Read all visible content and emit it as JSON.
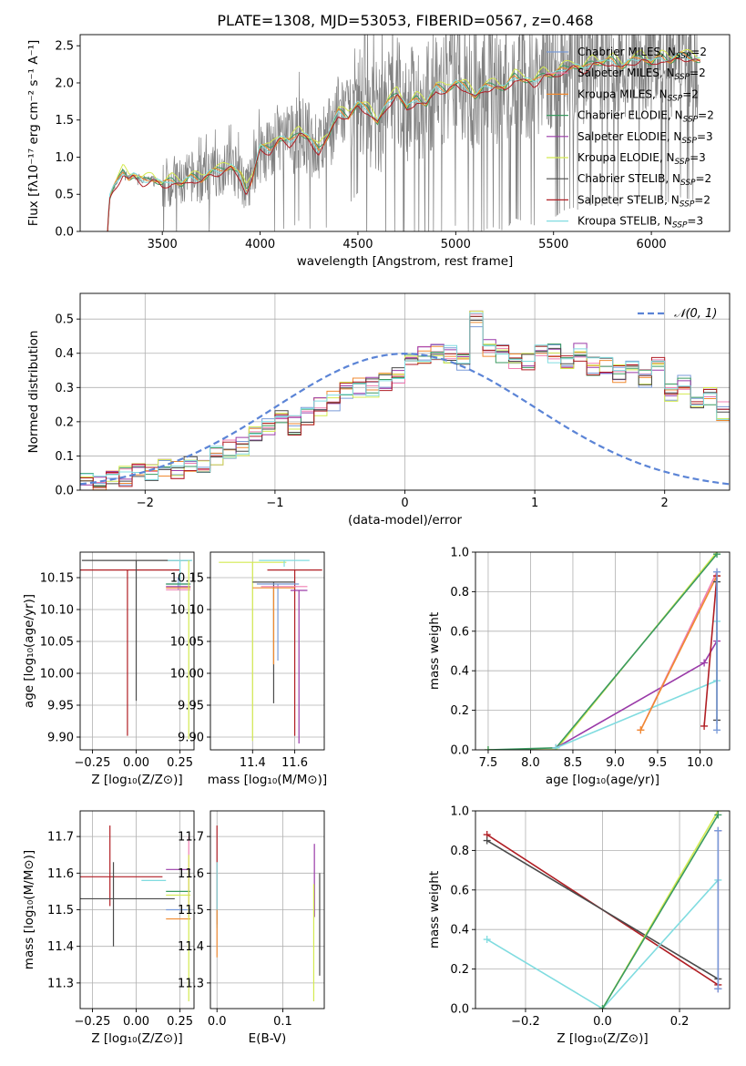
{
  "figure_title": "PLATE=1308, MJD=53053, FIBERID=0567, z=0.468",
  "colors": {
    "Chabrier MILES": "#7a9bd8",
    "Salpeter MILES": "#f07fb0",
    "Kroupa MILES": "#f08a30",
    "Chabrier ELODIE": "#3a9a60",
    "Salpeter ELODIE": "#9a3aa8",
    "Kroupa ELODIE": "#d4ea50",
    "Chabrier STELIB": "#4a4a4a",
    "Salpeter STELIB": "#b01e24",
    "Kroupa STELIB": "#80dce0",
    "data": "#808080",
    "normal": "#5b84d6"
  },
  "legend_models": [
    {
      "label": "Chabrier MILES, N",
      "nssp": "=2",
      "key": "Chabrier MILES"
    },
    {
      "label": "Salpeter MILES, N",
      "nssp": "=2",
      "key": "Salpeter MILES"
    },
    {
      "label": "Kroupa MILES, N",
      "nssp": "=2",
      "key": "Kroupa MILES"
    },
    {
      "label": "Chabrier ELODIE, N",
      "nssp": "=2",
      "key": "Chabrier ELODIE"
    },
    {
      "label": "Salpeter ELODIE, N",
      "nssp": "=3",
      "key": "Salpeter ELODIE"
    },
    {
      "label": "Kroupa ELODIE, N",
      "nssp": "=3",
      "key": "Kroupa ELODIE"
    },
    {
      "label": "Chabrier STELIB, N",
      "nssp": "=2",
      "key": "Chabrier STELIB"
    },
    {
      "label": "Salpeter STELIB, N",
      "nssp": "=2",
      "key": "Salpeter STELIB"
    },
    {
      "label": "Kroupa STELIB, N",
      "nssp": "=3",
      "key": "Kroupa STELIB"
    }
  ],
  "chart_data": [
    {
      "id": "spectrum",
      "type": "line",
      "xlabel": "wavelength [Angstrom, rest frame]",
      "ylabel": "Flux [fλ10⁻¹⁷ erg cm⁻² s⁻¹ A⁻¹]",
      "xlim": [
        3080,
        6400
      ],
      "ylim": [
        0,
        2.65
      ],
      "xticks": [
        3500,
        4000,
        4500,
        5000,
        5500,
        6000
      ],
      "yticks": [
        0.0,
        0.5,
        1.0,
        1.5,
        2.0,
        2.5
      ],
      "grid": false,
      "legend": "top-right",
      "model_continuum": {
        "x": [
          3220,
          3230,
          3250,
          3280,
          3300,
          3330,
          3350,
          3400,
          3450,
          3500,
          3550,
          3600,
          3650,
          3700,
          3750,
          3800,
          3850,
          3900,
          3930,
          3960,
          4000,
          4050,
          4100,
          4150,
          4200,
          4250,
          4300,
          4350,
          4400,
          4450,
          4500,
          4550,
          4600,
          4650,
          4700,
          4750,
          4800,
          4850,
          4900,
          4950,
          5000,
          5050,
          5100,
          5150,
          5200,
          5250,
          5300,
          5350,
          5400,
          5450,
          5500,
          5550,
          5600,
          5650,
          5700,
          5750,
          5800,
          5850,
          5900,
          5950,
          6000,
          6050,
          6100,
          6150,
          6200,
          6250
        ],
        "y": [
          0.0,
          0.45,
          0.58,
          0.72,
          0.82,
          0.72,
          0.76,
          0.68,
          0.72,
          0.63,
          0.7,
          0.64,
          0.74,
          0.7,
          0.8,
          0.83,
          0.88,
          0.75,
          0.55,
          0.72,
          1.14,
          1.1,
          1.26,
          1.2,
          1.35,
          1.25,
          1.1,
          1.3,
          1.62,
          1.55,
          1.72,
          1.65,
          1.48,
          1.72,
          1.88,
          1.66,
          1.8,
          1.72,
          1.95,
          1.9,
          2.0,
          1.96,
          1.82,
          1.95,
          1.98,
          1.92,
          2.1,
          2.05,
          2.0,
          2.14,
          2.1,
          2.2,
          2.24,
          2.18,
          2.3,
          2.26,
          2.32,
          2.22,
          2.3,
          2.36,
          2.26,
          2.36,
          2.3,
          2.38,
          2.35,
          2.3
        ]
      }
    },
    {
      "id": "residuals",
      "type": "line",
      "xlabel": "(data-model)/error",
      "ylabel": "Normed distribution",
      "xlim": [
        -2.5,
        2.5
      ],
      "ylim": [
        0,
        0.575
      ],
      "xticks": [
        -2,
        -1,
        0,
        1,
        2
      ],
      "yticks": [
        0.0,
        0.1,
        0.2,
        0.3,
        0.4,
        0.5
      ],
      "grid": true,
      "legend": "top-right",
      "legend_label": "𝒩(0, 1)",
      "hist_bins": {
        "start": -2.5,
        "width": 0.1
      },
      "hist_base": [
        0.02,
        0.03,
        0.04,
        0.04,
        0.05,
        0.05,
        0.06,
        0.06,
        0.07,
        0.08,
        0.1,
        0.12,
        0.13,
        0.16,
        0.18,
        0.21,
        0.19,
        0.22,
        0.24,
        0.26,
        0.29,
        0.3,
        0.3,
        0.32,
        0.34,
        0.38,
        0.4,
        0.4,
        0.4,
        0.37,
        0.5,
        0.42,
        0.4,
        0.38,
        0.37,
        0.42,
        0.4,
        0.38,
        0.4,
        0.36,
        0.37,
        0.34,
        0.36,
        0.33,
        0.36,
        0.29,
        0.31,
        0.25,
        0.27,
        0.23,
        0.2,
        0.2,
        0.18,
        0.15,
        0.14,
        0.12,
        0.1,
        0.09,
        0.08,
        0.07,
        0.07,
        0.06,
        0.05,
        0.05,
        0.04,
        0.03,
        0.03,
        0.03,
        0.02,
        0.02,
        0.02,
        0.02,
        0.02,
        0.02,
        0.02
      ],
      "normal": {
        "mean": 0,
        "sigma": 1
      }
    },
    {
      "id": "age_vs_Z",
      "type": "scatter",
      "xlabel": "Z [log₁₀(Z/Z⊙)]",
      "ylabel": "age  [log₁₀(age/yr)]",
      "xlim": [
        -0.32,
        0.33
      ],
      "ylim": [
        9.88,
        10.19
      ],
      "xticks": [
        -0.25,
        0.0,
        0.25
      ],
      "xticklabels": [
        "−0.25",
        "0.00",
        "0.25"
      ],
      "yticks": [
        9.9,
        9.95,
        10.0,
        10.05,
        10.1,
        10.15
      ],
      "grid": true,
      "points": [
        {
          "model": "Salpeter STELIB",
          "x": -0.05,
          "xerr": 0.3,
          "y": 10.162,
          "yerr": [
            0.26,
            0.0
          ]
        },
        {
          "model": "Chabrier STELIB",
          "x": 0.0,
          "xerr": 0.31,
          "y": 10.177,
          "yerr": [
            0.22,
            0.0
          ]
        },
        {
          "model": "Kroupa STELIB",
          "x": 0.25,
          "xerr": 0.07,
          "y": 10.177,
          "yerr": [
            0.04,
            0.0
          ]
        },
        {
          "model": "Chabrier MILES",
          "x": 0.24,
          "xerr": 0.07,
          "y": 10.14,
          "yerr": [
            0.01,
            0.01
          ]
        },
        {
          "model": "Chabrier ELODIE",
          "x": 0.24,
          "xerr": 0.07,
          "y": 10.14,
          "yerr": [
            0.0,
            0.0
          ]
        },
        {
          "model": "Kroupa MILES",
          "x": 0.24,
          "xerr": 0.07,
          "y": 10.134,
          "yerr": [
            0.0,
            0.0
          ]
        },
        {
          "model": "Salpeter MILES",
          "x": 0.24,
          "xerr": 0.07,
          "y": 10.131,
          "yerr": [
            0.0,
            0.0
          ]
        },
        {
          "model": "Salpeter ELODIE",
          "x": 0.24,
          "xerr": 0.07,
          "y": 10.136,
          "yerr": [
            0.0,
            0.0
          ]
        },
        {
          "model": "Kroupa ELODIE",
          "x": 0.3,
          "xerr": 0.0,
          "y": 10.177,
          "yerr": [
            0.28,
            0.0
          ]
        }
      ]
    },
    {
      "id": "age_vs_mass",
      "type": "scatter",
      "xlabel": "mass [log₁₀(M/M⊙)]",
      "ylabel": "",
      "xlim": [
        11.2,
        11.74
      ],
      "ylim": [
        9.88,
        10.19
      ],
      "xticks": [
        11.4,
        11.6
      ],
      "xticklabels": [
        "11.4",
        "11.6"
      ],
      "yticks": [
        9.9,
        9.95,
        10.0,
        10.05,
        10.1,
        10.15
      ],
      "grid": true,
      "points": [
        {
          "model": "Kroupa ELODIE",
          "x": 11.4,
          "xerr": 0.16,
          "y": 10.174,
          "yerr": [
            0.28,
            0.0
          ]
        },
        {
          "model": "Kroupa STELIB",
          "x": 11.55,
          "xerr": 0.12,
          "y": 10.177,
          "yerr": [
            0.01,
            0.0
          ]
        },
        {
          "model": "Salpeter STELIB",
          "x": 11.6,
          "xerr": 0.13,
          "y": 10.162,
          "yerr": [
            0.26,
            0.0
          ]
        },
        {
          "model": "Chabrier STELIB",
          "x": 11.5,
          "xerr": 0.1,
          "y": 10.143,
          "yerr": [
            0.19,
            0.0
          ]
        },
        {
          "model": "Chabrier MILES",
          "x": 11.52,
          "xerr": 0.1,
          "y": 10.14,
          "yerr": [
            0.12,
            0.0
          ]
        },
        {
          "model": "Kroupa MILES",
          "x": 11.5,
          "xerr": 0.1,
          "y": 10.134,
          "yerr": [
            0.12,
            0.0
          ]
        },
        {
          "model": "Salpeter MILES",
          "x": 11.55,
          "xerr": 0.11,
          "y": 10.136,
          "yerr": [
            0.0,
            0.0
          ]
        },
        {
          "model": "Salpeter ELODIE",
          "x": 11.62,
          "xerr": 0.04,
          "y": 10.13,
          "yerr": [
            0.24,
            0.0
          ]
        }
      ]
    },
    {
      "id": "weight_vs_age",
      "type": "line",
      "xlabel": "age  [log₁₀(age/yr)]",
      "ylabel": "mass weight",
      "xlim": [
        7.35,
        10.35
      ],
      "ylim": [
        0,
        1.0
      ],
      "xticks": [
        7.5,
        8.0,
        8.5,
        9.0,
        9.5,
        10.0
      ],
      "xticklabels": [
        "7.5",
        "8.0",
        "8.5",
        "9.0",
        "9.5",
        "10.0"
      ],
      "yticks": [
        0.0,
        0.2,
        0.4,
        0.6,
        0.8,
        1.0
      ],
      "grid": true,
      "series": [
        {
          "model": "Kroupa ELODIE",
          "x": [
            7.5,
            8.3,
            10.2
          ],
          "y": [
            0.0,
            0.0,
            1.0
          ]
        },
        {
          "model": "Chabrier ELODIE",
          "x": [
            7.5,
            8.3,
            10.2
          ],
          "y": [
            0.0,
            0.01,
            0.99
          ]
        },
        {
          "model": "Salpeter ELODIE",
          "x": [
            8.3,
            10.05,
            10.2
          ],
          "y": [
            0.01,
            0.44,
            0.55
          ]
        },
        {
          "model": "Kroupa STELIB",
          "x": [
            8.3,
            10.2,
            10.2
          ],
          "y": [
            0.01,
            0.35,
            0.65
          ]
        },
        {
          "model": "Salpeter MILES",
          "x": [
            9.3,
            10.2
          ],
          "y": [
            0.1,
            0.9
          ]
        },
        {
          "model": "Kroupa MILES",
          "x": [
            9.3,
            10.2
          ],
          "y": [
            0.1,
            0.88
          ]
        },
        {
          "model": "Salpeter STELIB",
          "x": [
            10.05,
            10.2
          ],
          "y": [
            0.12,
            0.88
          ]
        },
        {
          "model": "Chabrier STELIB",
          "x": [
            10.2,
            10.2
          ],
          "y": [
            0.15,
            0.85
          ]
        },
        {
          "model": "Chabrier MILES",
          "x": [
            10.2,
            10.2
          ],
          "y": [
            0.1,
            0.9
          ]
        }
      ]
    },
    {
      "id": "mass_vs_Z",
      "type": "scatter",
      "xlabel": "Z [log₁₀(Z/Z⊙)]",
      "ylabel": "mass [log₁₀(M/M⊙)]",
      "xlim": [
        -0.32,
        0.33
      ],
      "ylim": [
        11.23,
        11.77
      ],
      "xticks": [
        -0.25,
        0.0,
        0.25
      ],
      "xticklabels": [
        "−0.25",
        "0.00",
        "0.25"
      ],
      "yticks": [
        11.3,
        11.4,
        11.5,
        11.6,
        11.7
      ],
      "grid": true,
      "points": [
        {
          "model": "Salpeter STELIB",
          "x": -0.15,
          "xerr": 0.3,
          "y": 11.59,
          "yerr": [
            0.08,
            0.14
          ]
        },
        {
          "model": "Chabrier STELIB",
          "x": -0.13,
          "xerr": 0.35,
          "y": 11.53,
          "yerr": [
            0.13,
            0.1
          ]
        },
        {
          "model": "Kroupa STELIB",
          "x": 0.1,
          "xerr": 0.07,
          "y": 11.58,
          "yerr": [
            0.0,
            0.0
          ]
        },
        {
          "model": "Salpeter ELODIE",
          "x": 0.24,
          "xerr": 0.07,
          "y": 11.61,
          "yerr": [
            0.0,
            0.0
          ]
        },
        {
          "model": "Chabrier ELODIE",
          "x": 0.24,
          "xerr": 0.07,
          "y": 11.55,
          "yerr": [
            0.0,
            0.0
          ]
        },
        {
          "model": "Kroupa ELODIE",
          "x": 0.24,
          "xerr": 0.07,
          "y": 11.54,
          "yerr": [
            0.0,
            0.0
          ]
        },
        {
          "model": "Chabrier MILES",
          "x": 0.24,
          "xerr": 0.07,
          "y": 11.5,
          "yerr": [
            0.0,
            0.0
          ]
        },
        {
          "model": "Kroupa MILES",
          "x": 0.24,
          "xerr": 0.07,
          "y": 11.475,
          "yerr": [
            0.0,
            0.0
          ]
        },
        {
          "model": "Salpeter MILES",
          "x": 0.3,
          "xerr": 0.0,
          "y": 11.6,
          "yerr": [
            0.12,
            0.1
          ]
        },
        {
          "model": "Kroupa ELODIE",
          "x": 0.3,
          "xerr": 0.0,
          "y": 11.55,
          "yerr": [
            0.3,
            0.1
          ]
        }
      ]
    },
    {
      "id": "mass_vs_EBV",
      "type": "scatter",
      "xlabel": "E(B-V)",
      "ylabel": "",
      "xlim": [
        -0.01,
        0.163
      ],
      "ylim": [
        11.23,
        11.77
      ],
      "xticks": [
        0.0,
        0.1
      ],
      "xticklabels": [
        "0.0",
        "0.1"
      ],
      "yticks": [
        11.3,
        11.4,
        11.5,
        11.6,
        11.7
      ],
      "grid": true,
      "points": [
        {
          "model": "Salpeter STELIB",
          "x": 0.0,
          "xerr": 0.0,
          "y": 11.6,
          "yerr": [
            0.14,
            0.13
          ]
        },
        {
          "model": "Kroupa STELIB",
          "x": 0.0,
          "xerr": 0.0,
          "y": 11.55,
          "yerr": [
            0.1,
            0.08
          ]
        },
        {
          "model": "Kroupa MILES",
          "x": 0.0,
          "xerr": 0.0,
          "y": 11.45,
          "yerr": [
            0.08,
            0.05
          ]
        },
        {
          "model": "Salpeter ELODIE",
          "x": 0.148,
          "xerr": 0.0,
          "y": 11.6,
          "yerr": [
            0.12,
            0.08
          ]
        },
        {
          "model": "Kroupa ELODIE",
          "x": 0.147,
          "xerr": 0.0,
          "y": 11.43,
          "yerr": [
            0.18,
            0.14
          ]
        },
        {
          "model": "Chabrier STELIB",
          "x": 0.156,
          "xerr": 0.0,
          "y": 11.45,
          "yerr": [
            0.13,
            0.15
          ]
        }
      ]
    },
    {
      "id": "weight_vs_Z",
      "type": "line",
      "xlabel": "Z [log₁₀(Z/Z⊙)]",
      "ylabel": "mass weight",
      "xlim": [
        -0.33,
        0.33
      ],
      "ylim": [
        0,
        1.0
      ],
      "xticks": [
        -0.2,
        0.0,
        0.2
      ],
      "xticklabels": [
        "−0.2",
        "0.0",
        "0.2"
      ],
      "yticks": [
        0.0,
        0.2,
        0.4,
        0.6,
        0.8,
        1.0
      ],
      "grid": true,
      "series": [
        {
          "model": "Salpeter STELIB",
          "x": [
            -0.3,
            0.3
          ],
          "y": [
            0.88,
            0.12
          ]
        },
        {
          "model": "Chabrier STELIB",
          "x": [
            -0.3,
            0.3
          ],
          "y": [
            0.85,
            0.15
          ]
        },
        {
          "model": "Kroupa STELIB",
          "x": [
            -0.3,
            0.0,
            0.3
          ],
          "y": [
            0.35,
            0.0,
            0.65
          ]
        },
        {
          "model": "Kroupa ELODIE",
          "x": [
            0.0,
            0.3
          ],
          "y": [
            0.0,
            1.0
          ]
        },
        {
          "model": "Chabrier ELODIE",
          "x": [
            0.0,
            0.3
          ],
          "y": [
            0.0,
            0.98
          ]
        },
        {
          "model": "Salpeter ELODIE",
          "x": [
            0.3,
            0.3
          ],
          "y": [
            0.1,
            0.9
          ]
        },
        {
          "model": "Chabrier MILES",
          "x": [
            0.3,
            0.3
          ],
          "y": [
            0.1,
            0.9
          ]
        }
      ]
    }
  ]
}
